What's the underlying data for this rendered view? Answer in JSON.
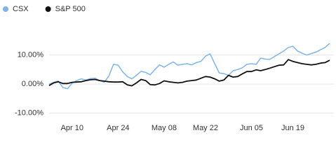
{
  "chart_data": {
    "type": "line",
    "categories": [
      null,
      null,
      null,
      null,
      null,
      "Apr 10",
      null,
      null,
      null,
      null,
      null,
      null,
      null,
      null,
      null,
      "Apr 24",
      null,
      null,
      null,
      null,
      null,
      null,
      null,
      null,
      null,
      "May 08",
      null,
      null,
      null,
      null,
      null,
      null,
      null,
      null,
      "May 22",
      null,
      null,
      null,
      null,
      null,
      null,
      null,
      null,
      null,
      "Jun 05",
      null,
      null,
      null,
      null,
      null,
      null,
      null,
      null,
      "Jun 19",
      null,
      null,
      null,
      null,
      null,
      null,
      null,
      null
    ],
    "series": [
      {
        "name": "CSX",
        "color": "#7fb5e8",
        "values": [
          0,
          0.6,
          1.0,
          -1.2,
          -1.6,
          0.3,
          1.2,
          1.8,
          1.4,
          1.9,
          2.0,
          1.2,
          0.6,
          2.8,
          6.8,
          6.5,
          4.2,
          2.6,
          1.8,
          3.0,
          4.4,
          4.0,
          3.2,
          5.0,
          6.6,
          5.8,
          6.8,
          7.6,
          6.5,
          6.8,
          7.0,
          6.6,
          7.4,
          7.8,
          9.6,
          10.4,
          7.0,
          3.8,
          3.6,
          3.0,
          4.6,
          5.0,
          5.6,
          6.8,
          7.0,
          6.8,
          8.9,
          8.6,
          8.5,
          9.5,
          10.4,
          11.4,
          12.6,
          13.0,
          11.4,
          10.6,
          10.0,
          10.5,
          11.0,
          11.8,
          12.6,
          14.0
        ]
      },
      {
        "name": "S&P 500",
        "color": "#111111",
        "values": [
          -0.5,
          0.4,
          0.8,
          0.2,
          0.2,
          0.6,
          0.7,
          0.8,
          1.2,
          1.5,
          1.6,
          1.2,
          1.0,
          0.8,
          0.7,
          0.7,
          0.8,
          -0.3,
          -0.6,
          0.4,
          1.6,
          1.2,
          -0.2,
          -0.3,
          0.2,
          1.1,
          0.8,
          0.6,
          0.4,
          0.6,
          1.0,
          1.2,
          1.4,
          2.0,
          2.6,
          2.4,
          1.8,
          1.0,
          1.4,
          3.0,
          2.4,
          2.6,
          3.5,
          4.3,
          4.3,
          4.9,
          4.6,
          5.0,
          5.5,
          6.0,
          6.5,
          6.6,
          8.4,
          7.8,
          7.4,
          7.0,
          6.8,
          6.6,
          6.8,
          7.2,
          7.4,
          8.2
        ]
      }
    ],
    "ylim": [
      -12.5,
      21.7
    ],
    "yticks": [
      {
        "value": -10,
        "label": "-10.00%"
      },
      {
        "value": 0,
        "label": "0.00%"
      },
      {
        "value": 10,
        "label": "10.00%"
      }
    ],
    "grid": true
  }
}
